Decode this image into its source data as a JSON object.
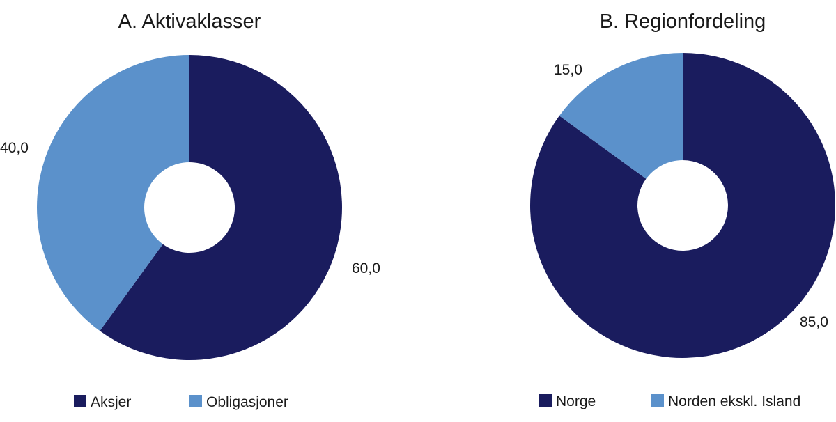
{
  "chart_data": [
    {
      "type": "pie",
      "title": "A. Aktivaklasser",
      "categories": [
        "Aksjer",
        "Obligasjoner"
      ],
      "values": [
        60.0,
        40.0
      ],
      "value_labels": [
        "60,0",
        "40,0"
      ],
      "colors": [
        "#1a1c5e",
        "#5b91cb"
      ],
      "legend": "bottom"
    },
    {
      "type": "pie",
      "title": "B. Regionfordeling",
      "categories": [
        "Norge",
        "Norden ekskl. Island"
      ],
      "values": [
        85.0,
        15.0
      ],
      "value_labels": [
        "85,0",
        "15,0"
      ],
      "colors": [
        "#1a1c5e",
        "#5b91cb"
      ],
      "legend": "bottom"
    }
  ]
}
